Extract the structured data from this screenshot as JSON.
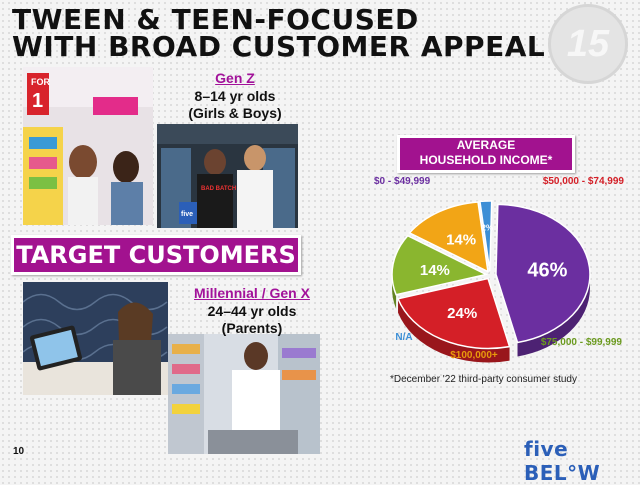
{
  "title": {
    "line1": "Tween & Teen-Focused",
    "line2": "with Broad Customer Appeal"
  },
  "banner": "Target Customers",
  "genz": {
    "label": "Gen Z",
    "age": "8–14 yr olds",
    "who": "(Girls & Boys)"
  },
  "millennial": {
    "label": "Millennial / Gen X",
    "age": "24–44 yr olds",
    "who": "(Parents)"
  },
  "photo_signs": {
    "for1": "FOR",
    "for1_num": "1",
    "tshirt": "BAD BATCH",
    "bag": "five"
  },
  "income_title": {
    "line1": "Average",
    "line2": "Household Income*"
  },
  "footnote": "*December '22 third-party consumer study",
  "page_number": "10",
  "logo": "five BEL°W",
  "chart_data": {
    "type": "pie",
    "title": "Average Household Income*",
    "slices": [
      {
        "label": "$0 - $49,999",
        "value": 46,
        "value_label": "46%",
        "color": "#6b2fa0",
        "label_color": "#6b2fa0"
      },
      {
        "label": "$50,000 - $74,999",
        "value": 24,
        "value_label": "24%",
        "color": "#d41f27",
        "label_color": "#d41f27"
      },
      {
        "label": "$75,000 - $99,999",
        "value": 14,
        "value_label": "14%",
        "color": "#8ab62f",
        "label_color": "#6b9a1f"
      },
      {
        "label": "$100,000+",
        "value": 14,
        "value_label": "14%",
        "color": "#f2a516",
        "label_color": "#e89a0c"
      },
      {
        "label": "N/A",
        "value": 2,
        "value_label": "2%",
        "color": "#3d8fd6",
        "label_color": "#3d8fd6"
      }
    ]
  }
}
